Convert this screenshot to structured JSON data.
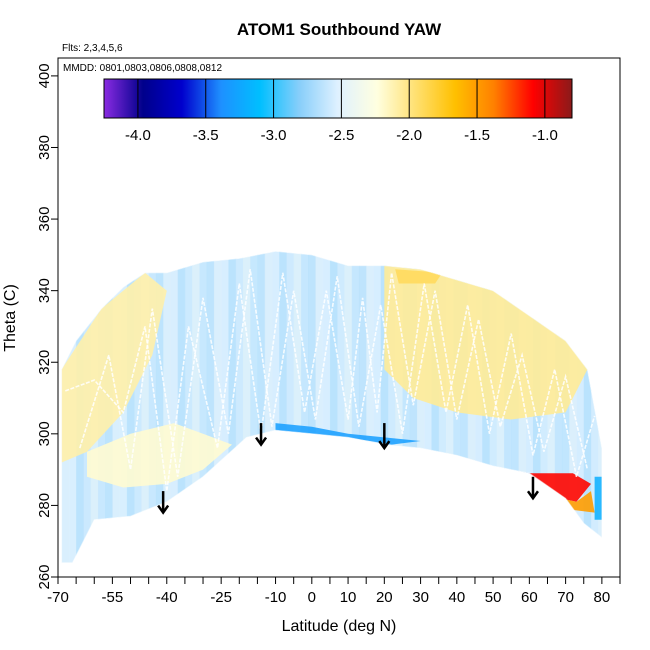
{
  "chart_data": {
    "type": "heatmap",
    "title": "ATOM1 Southbound YAW",
    "flights_label": "Flts: 2,3,4,5,6",
    "dates_label": "MMDD: 0801,0803,0806,0808,0812",
    "xlabel": "Latitude (deg N)",
    "ylabel": "Theta (C)",
    "xlim": [
      -70,
      85
    ],
    "ylim": [
      260,
      405
    ],
    "x_ticks": [
      -70,
      -55,
      -40,
      -25,
      -10,
      0,
      10,
      20,
      30,
      40,
      50,
      60,
      70,
      80
    ],
    "x_tick_labels": [
      "-70",
      "-55",
      "-40",
      "-25",
      "-10",
      "0",
      "10",
      "20",
      "30",
      "40",
      "50",
      "60",
      "70",
      "80"
    ],
    "x_minor_ticks": [
      -65,
      -60,
      -50,
      -45,
      -35,
      -30,
      -20,
      -15,
      -5,
      5,
      15,
      25,
      35,
      45,
      55,
      65,
      75,
      85
    ],
    "y_ticks": [
      260,
      280,
      300,
      320,
      340,
      360,
      380,
      400
    ],
    "y_tick_labels": [
      "260",
      "280",
      "300",
      "320",
      "340",
      "360",
      "380",
      "400"
    ],
    "colorbar": {
      "range": [
        -4.25,
        -0.8
      ],
      "ticks": [
        -4.0,
        -3.5,
        -3.0,
        -2.5,
        -2.0,
        -1.5,
        -1.0
      ],
      "tick_labels": [
        "-4.0",
        "-3.5",
        "-3.0",
        "-2.5",
        "-2.0",
        "-1.5",
        "-1.0"
      ],
      "colors": [
        "#8a2be2",
        "#00008b",
        "#0000cd",
        "#1e90ff",
        "#00bfff",
        "#87cefa",
        "#dff1ff",
        "#ffffe0",
        "#ffe070",
        "#ffc000",
        "#ff8000",
        "#ff0000",
        "#8b1a1a"
      ]
    },
    "field": {
      "domain_top": [
        [
          -69,
          318
        ],
        [
          -65,
          326
        ],
        [
          -58,
          335
        ],
        [
          -52,
          341
        ],
        [
          -46,
          345
        ],
        [
          -40,
          345
        ],
        [
          -30,
          348
        ],
        [
          -20,
          349
        ],
        [
          -10,
          351
        ],
        [
          0,
          350
        ],
        [
          10,
          347
        ],
        [
          20,
          347
        ],
        [
          30,
          346
        ],
        [
          40,
          343
        ],
        [
          50,
          340
        ],
        [
          60,
          333
        ],
        [
          70,
          326
        ],
        [
          76,
          318
        ],
        [
          80,
          296
        ]
      ],
      "domain_bottom": [
        [
          80,
          271
        ],
        [
          75,
          275
        ],
        [
          70,
          282
        ],
        [
          60,
          289
        ],
        [
          50,
          291
        ],
        [
          40,
          294
        ],
        [
          30,
          296
        ],
        [
          20,
          297
        ],
        [
          10,
          299
        ],
        [
          0,
          300
        ],
        [
          -10,
          301
        ],
        [
          -18,
          299
        ],
        [
          -30,
          288
        ],
        [
          -40,
          281
        ],
        [
          -50,
          277
        ],
        [
          -60,
          276
        ],
        [
          -66,
          264
        ],
        [
          -69,
          264
        ]
      ],
      "warm_regions": [
        {
          "value": -2.1,
          "poly": [
            [
              -69,
              318
            ],
            [
              -58,
              335
            ],
            [
              -46,
              345
            ],
            [
              -40,
              340
            ],
            [
              -44,
              322
            ],
            [
              -52,
              306
            ],
            [
              -62,
              295
            ],
            [
              -69,
              292
            ]
          ]
        },
        {
          "value": -2.2,
          "poly": [
            [
              -62,
              295
            ],
            [
              -50,
              300
            ],
            [
              -38,
              303
            ],
            [
              -30,
              300
            ],
            [
              -22,
              297
            ],
            [
              -30,
              290
            ],
            [
              -40,
              286
            ],
            [
              -52,
              285
            ],
            [
              -62,
              288
            ]
          ]
        },
        {
          "value": -2.05,
          "poly": [
            [
              20,
              347
            ],
            [
              30,
              346
            ],
            [
              40,
              343
            ],
            [
              50,
              340
            ],
            [
              60,
              333
            ],
            [
              70,
              326
            ],
            [
              76,
              318
            ],
            [
              70,
              306
            ],
            [
              55,
              304
            ],
            [
              40,
              306
            ],
            [
              28,
              310
            ],
            [
              20,
              318
            ]
          ]
        },
        {
          "value": -1.9,
          "poly": [
            [
              23,
              346
            ],
            [
              36,
              345
            ],
            [
              34,
              342
            ],
            [
              24,
              342
            ]
          ]
        },
        {
          "value": -1.1,
          "poly": [
            [
              60,
              289
            ],
            [
              72,
              289
            ],
            [
              77,
              286
            ],
            [
              73,
              281
            ],
            [
              64,
              283
            ]
          ]
        },
        {
          "value": -1.5,
          "poly": [
            [
              64,
              283
            ],
            [
              73,
              281
            ],
            [
              77,
              284
            ],
            [
              78,
              278
            ],
            [
              70,
              279
            ]
          ]
        }
      ],
      "cool_regions": [
        {
          "value": -3.3,
          "poly": [
            [
              -10,
              303
            ],
            [
              0,
              302
            ],
            [
              10,
              300
            ],
            [
              20,
              299
            ],
            [
              30,
              298
            ],
            [
              22,
              297
            ],
            [
              10,
              299
            ],
            [
              0,
              300
            ],
            [
              -10,
              301
            ]
          ]
        },
        {
          "value": -3.5,
          "poly": [
            [
              48,
              291
            ],
            [
              60,
              289
            ],
            [
              62,
              287
            ],
            [
              50,
              288
            ]
          ]
        },
        {
          "value": -3.2,
          "poly": [
            [
              78,
              276
            ],
            [
              80,
              276
            ],
            [
              80,
              288
            ],
            [
              78,
              288
            ]
          ]
        }
      ]
    },
    "white_traces": [
      {
        "points": [
          [
            -68,
            312
          ],
          [
            -60,
            315
          ],
          [
            -52,
            306
          ],
          [
            -46,
            330
          ],
          [
            -40,
            284
          ],
          [
            -34,
            330
          ],
          [
            -26,
            296
          ],
          [
            -20,
            342
          ],
          [
            -14,
            300
          ],
          [
            -8,
            345
          ],
          [
            -2,
            306
          ],
          [
            4,
            340
          ],
          [
            10,
            304
          ],
          [
            14,
            338
          ],
          [
            18,
            306
          ],
          [
            22,
            345
          ],
          [
            28,
            308
          ],
          [
            34,
            340
          ],
          [
            40,
            304
          ],
          [
            46,
            332
          ],
          [
            52,
            302
          ],
          [
            58,
            322
          ],
          [
            64,
            295
          ],
          [
            70,
            316
          ],
          [
            76,
            290
          ]
        ]
      },
      {
        "points": [
          [
            -64,
            296
          ],
          [
            -56,
            322
          ],
          [
            -50,
            290
          ],
          [
            -44,
            335
          ],
          [
            -37,
            288
          ],
          [
            -30,
            338
          ],
          [
            -23,
            300
          ],
          [
            -17,
            346
          ],
          [
            -11,
            302
          ],
          [
            -5,
            340
          ],
          [
            1,
            304
          ],
          [
            7,
            344
          ],
          [
            13,
            302
          ],
          [
            19,
            336
          ],
          [
            25,
            300
          ],
          [
            31,
            342
          ],
          [
            37,
            306
          ],
          [
            43,
            336
          ],
          [
            49,
            300
          ],
          [
            55,
            328
          ],
          [
            61,
            294
          ],
          [
            67,
            318
          ],
          [
            73,
            288
          ],
          [
            78,
            305
          ]
        ]
      }
    ],
    "arrows": [
      {
        "x": -41,
        "y_start": 284,
        "y_end": 278
      },
      {
        "x": -14,
        "y_start": 303,
        "y_end": 297
      },
      {
        "x": 20,
        "y_start": 303,
        "y_end": 296
      },
      {
        "x": 61,
        "y_start": 288,
        "y_end": 282
      }
    ]
  }
}
